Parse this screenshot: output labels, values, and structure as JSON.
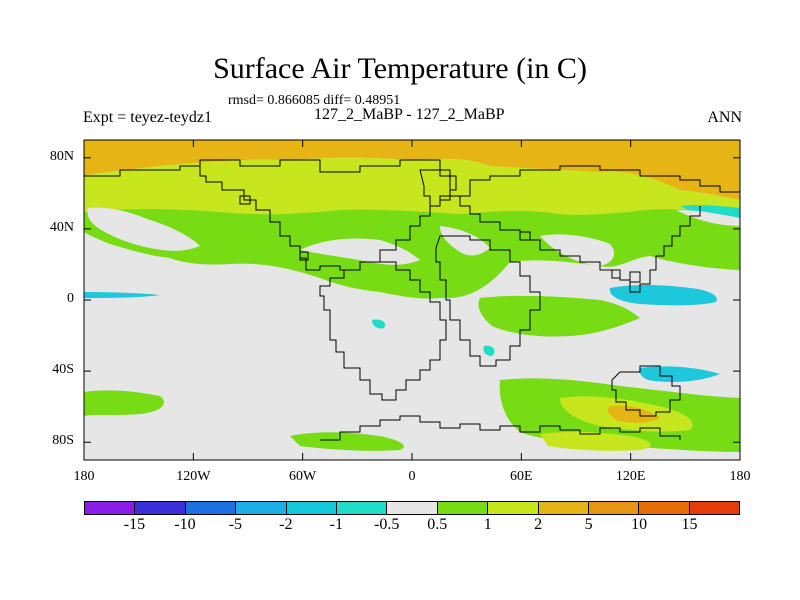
{
  "title": "Surface Air Temperature (in C)",
  "stats": "rmsd= 0.866085 diff= 0.48951",
  "experiment": "Expt = teyez-teydz1",
  "runs": "127_2_MaBP - 127_2_MaBP",
  "season": "ANN",
  "map": {
    "lon_range": [
      -180,
      180
    ],
    "lat_range": [
      -90,
      90
    ],
    "x_ticks": [
      {
        "lon": -180,
        "label": "180"
      },
      {
        "lon": -120,
        "label": "120W"
      },
      {
        "lon": -60,
        "label": "60W"
      },
      {
        "lon": 0,
        "label": "0"
      },
      {
        "lon": 60,
        "label": "60E"
      },
      {
        "lon": 120,
        "label": "120E"
      },
      {
        "lon": 180,
        "label": "180"
      }
    ],
    "y_ticks": [
      {
        "lat": 80,
        "label": "80N"
      },
      {
        "lat": 40,
        "label": "40N"
      },
      {
        "lat": 0,
        "label": "0"
      },
      {
        "lat": -40,
        "label": "40S"
      },
      {
        "lat": -80,
        "label": "80S"
      }
    ]
  },
  "colorbar": {
    "colors": [
      "#8a1ee6",
      "#3a2fd9",
      "#1e6fe0",
      "#1eaee6",
      "#14c8dc",
      "#1edcc8",
      "#e6e6e6",
      "#78dc14",
      "#c8e61e",
      "#e6b414",
      "#e69614",
      "#e66e0a",
      "#e63c0a"
    ],
    "labels": [
      "-15",
      "-10",
      "-5",
      "-2",
      "-1",
      "-0.5",
      "0.5",
      "1",
      "2",
      "5",
      "10",
      "15"
    ]
  }
}
